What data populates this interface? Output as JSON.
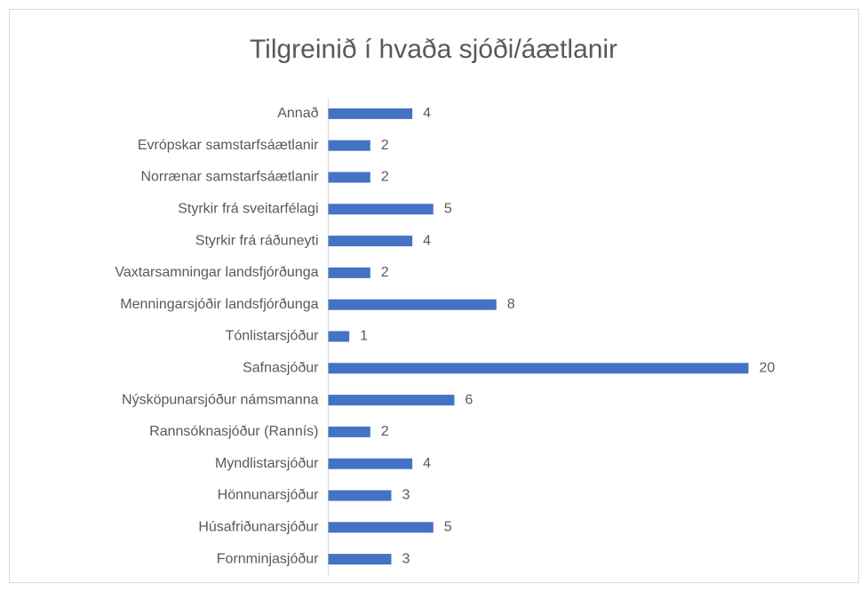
{
  "chart_data": {
    "type": "bar",
    "orientation": "horizontal",
    "title": "Tilgreinið í hvaða sjóði/áætlanir",
    "categories": [
      "Annað",
      "Evrópskar samstarfsáætlanir",
      "Norrænar samstarfsáætlanir",
      "Styrkir frá sveitarfélagi",
      "Styrkir frá ráðuneyti",
      "Vaxtarsamningar landsfjórðunga",
      "Menningarsjóðir landsfjórðunga",
      "Tónlistarsjóður",
      "Safnasjóður",
      "Nýsköpunarsjóður námsmanna",
      "Rannsóknasjóður (Rannís)",
      "Myndlistarsjóður",
      "Hönnunarsjóður",
      "Húsafriðunarsjóður",
      "Fornminjasjóður"
    ],
    "values": [
      4,
      2,
      2,
      5,
      4,
      2,
      8,
      1,
      20,
      6,
      2,
      4,
      3,
      5,
      3
    ],
    "color": "#4472c4"
  }
}
